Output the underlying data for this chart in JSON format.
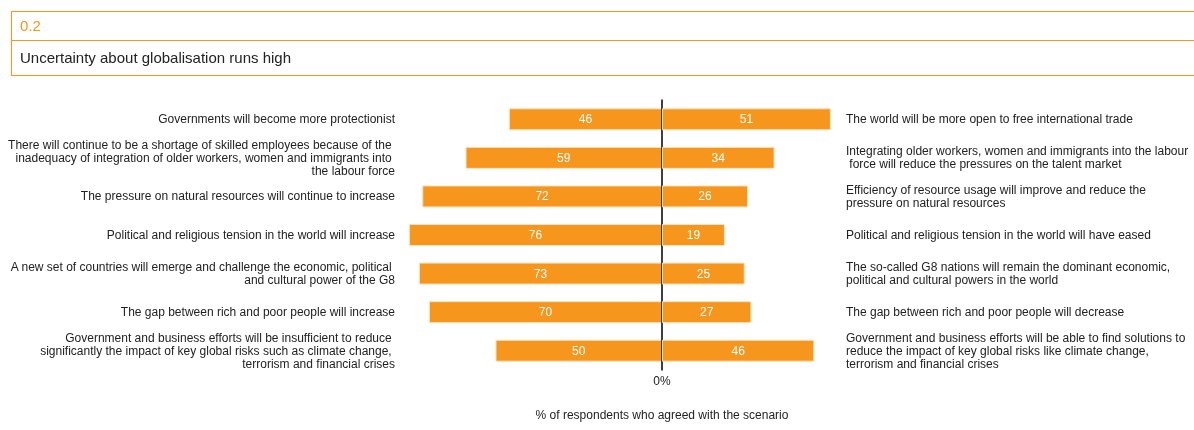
{
  "chart_data": [
    {
      "type": "bar",
      "orientation": "horizontal",
      "title": "0.2",
      "subtitle": "Uncertainty about globalisation runs high",
      "xlabel": "% of respondents who agreed with the scenario",
      "categories": [
        "Governments will become more protectionist",
        "There will continue to be a shortage of skilled employees because of the inadequacy of integration of older workers, women and immigrants into the labour force",
        "The pressure on natural resources will continue to increase",
        "Political and religious tension in the world will increase",
        "A new set of countries will emerge and challenge the economic, political and cultural power of the G8",
        "The gap between rich and poor people will increase",
        "Government and business efforts will be insufficient to reduce significantly the impact of key global risks such as climate change, terrorism and financial crises"
      ],
      "series": [
        {
          "color": "#f7961d",
          "values": [
            46,
            59,
            72,
            76,
            73,
            70,
            50
          ]
        }
      ],
      "data_labels": true
    },
    {
      "type": "bar",
      "orientation": "horizontal",
      "annotations": [
        "0%"
      ],
      "categories": [
        "The world will be more open to free international trade",
        "Integrating older workers, women and immigrants into the labour force will reduce the pressures on the talent market",
        "Efficiency of resource usage will improve and reduce the pressure on natural resources",
        "Political and religious tension in the world will have eased",
        "The so-called G8 nations will remain the dominant economic, political and cultural powers in the world",
        "The gap between rich and poor people will decrease",
        "Government and business efforts will be able to find solutions to reduce the impact of key global risks like climate change, terrorism and financial crises"
      ],
      "series": [
        {
          "color": "#f7961d",
          "values": [
            51,
            34,
            26,
            19,
            25,
            27,
            46
          ]
        }
      ],
      "data_labels": true
    }
  ]
}
